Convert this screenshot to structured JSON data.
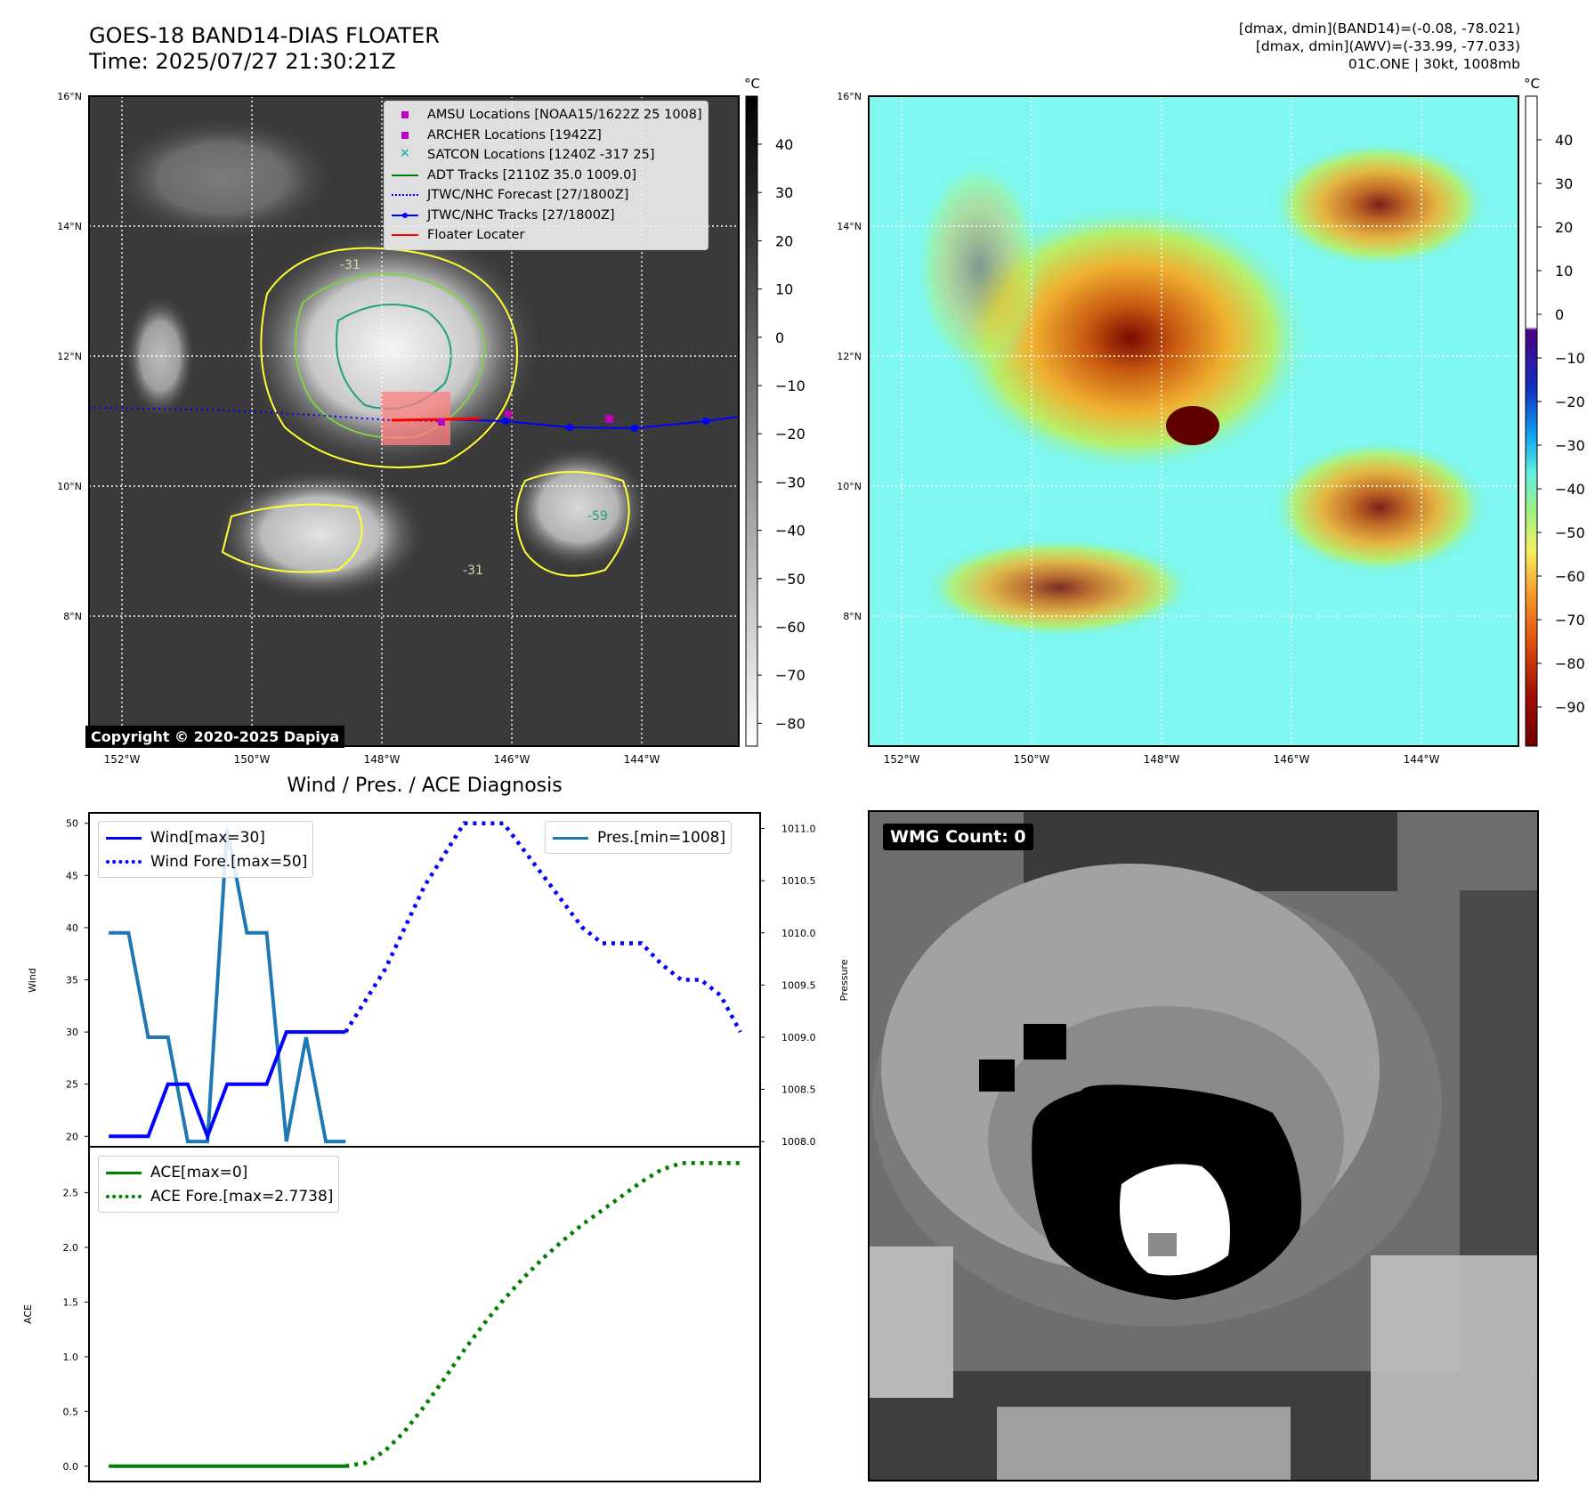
{
  "header": {
    "title_line1": "GOES-18 BAND14-DIAS FLOATER",
    "title_line2": "Time: 2025/07/27 21:30:21Z",
    "stats_line1": "[dmax, dmin](BAND14)=(-0.08, -78.021)",
    "stats_line2": "[dmax, dmin](AWV)=(-33.99, -77.033)",
    "stats_line3": "01C.ONE | 30kt, 1008mb"
  },
  "map_common": {
    "lon_ticks": [
      "152°W",
      "150°W",
      "148°W",
      "146°W",
      "144°W"
    ],
    "lat_ticks": [
      "16°N",
      "14°N",
      "12°N",
      "10°N",
      "8°N"
    ]
  },
  "ir_panel": {
    "colorbar_unit": "°C",
    "colorbar_ticks": [
      "40",
      "30",
      "20",
      "10",
      "0",
      "−10",
      "−20",
      "−30",
      "−40",
      "−50",
      "−60",
      "−70",
      "−80"
    ],
    "copyright": "Copyright © 2020-2025 Dapiya",
    "legend": [
      {
        "label": "AMSU Locations [NOAA15/1622Z 25 1008]",
        "color": "#c000c0",
        "style": "square"
      },
      {
        "label": "ARCHER Locations [1942Z]",
        "color": "#c000c0",
        "style": "square"
      },
      {
        "label": "SATCON Locations [1240Z -317 25]",
        "color": "#20b2aa",
        "style": "x"
      },
      {
        "label": "ADT Tracks [2110Z 35.0 1009.0]",
        "color": "#008000",
        "style": "line"
      },
      {
        "label": "JTWC/NHC Forecast [27/1800Z]",
        "color": "#0000ff",
        "style": "dotted"
      },
      {
        "label": "JTWC/NHC Tracks [27/1800Z]",
        "color": "#0000ff",
        "style": "line-marker"
      },
      {
        "label": "Floater Locater",
        "color": "#ff0000",
        "style": "line"
      }
    ],
    "contour_labels": [
      "-31",
      "-59",
      "-31"
    ]
  },
  "awv_panel": {
    "colorbar_unit": "°C",
    "colorbar_ticks": [
      "40",
      "30",
      "20",
      "10",
      "0",
      "−10",
      "−20",
      "−30",
      "−40",
      "−50",
      "−60",
      "−70",
      "−80",
      "−90"
    ]
  },
  "chart_data": [
    {
      "type": "line",
      "title": "Wind / Pres. / ACE Diagnosis",
      "ylabel": "Wind",
      "ylabel_right": "Pressure",
      "ylim": [
        19,
        51
      ],
      "ylim_right": [
        1007.95,
        1011.15
      ],
      "yticks": [
        "50",
        "45",
        "40",
        "35",
        "30",
        "25",
        "20"
      ],
      "yticks_right": [
        "1011.0",
        "1010.5",
        "1010.0",
        "1009.5",
        "1009.0",
        "1008.5",
        "1008.0"
      ],
      "x": [
        0,
        1,
        2,
        3,
        4,
        5,
        6,
        7,
        8,
        9,
        10,
        11,
        12,
        13,
        14,
        15,
        16,
        17,
        18,
        19,
        20,
        21,
        22,
        23,
        24,
        25,
        26,
        27,
        28,
        29,
        30,
        31,
        32
      ],
      "series": [
        {
          "name": "Wind[max=30]",
          "color": "#0000ff",
          "style": "solid",
          "x": [
            0,
            1,
            2,
            3,
            4,
            5,
            6,
            7,
            8,
            9,
            10,
            11,
            12
          ],
          "values": [
            20,
            20,
            20,
            25,
            25,
            20,
            25,
            25,
            25,
            30,
            30,
            30,
            30
          ]
        },
        {
          "name": "Wind Fore.[max=50]",
          "color": "#0000ff",
          "style": "dotted",
          "x": [
            12,
            13,
            14,
            15,
            16,
            17,
            18,
            19,
            20,
            21,
            22,
            23,
            24,
            25,
            26,
            27,
            28,
            29,
            30,
            31,
            32
          ],
          "values": [
            30,
            33,
            36,
            40,
            44,
            47,
            50,
            50,
            50,
            47.5,
            45,
            42.5,
            40,
            38.5,
            38.5,
            38.5,
            36.5,
            35,
            35,
            33.5,
            30
          ]
        },
        {
          "name": "Pres.[min=1008]",
          "color": "#1f77b4",
          "style": "solid",
          "axis": "right",
          "x": [
            0,
            1,
            2,
            3,
            4,
            5,
            6,
            7,
            8,
            9,
            10,
            11,
            12
          ],
          "values": [
            1010.0,
            1010.0,
            1009.0,
            1009.0,
            1008.0,
            1008.0,
            1011.0,
            1010.0,
            1010.0,
            1008.0,
            1009.0,
            1008.0,
            1008.0
          ]
        }
      ]
    },
    {
      "type": "line",
      "ylabel": "ACE",
      "ylim": [
        -0.14,
        2.92
      ],
      "yticks": [
        "2.5",
        "2.0",
        "1.5",
        "1.0",
        "0.5",
        "0.0"
      ],
      "x": [
        0,
        1,
        2,
        3,
        4,
        5,
        6,
        7,
        8,
        9,
        10,
        11,
        12,
        13,
        14,
        15,
        16,
        17,
        18,
        19,
        20,
        21,
        22,
        23,
        24,
        25,
        26,
        27,
        28,
        29,
        30,
        31,
        32
      ],
      "series": [
        {
          "name": "ACE[max=0]",
          "color": "#008000",
          "style": "solid",
          "x": [
            0,
            12
          ],
          "values": [
            0,
            0
          ]
        },
        {
          "name": "ACE Fore.[max=2.7738]",
          "color": "#008000",
          "style": "dotted",
          "x": [
            12,
            13,
            14,
            15,
            16,
            17,
            18,
            19,
            20,
            21,
            22,
            23,
            24,
            25,
            26,
            27,
            28,
            29,
            30,
            31,
            32
          ],
          "values": [
            0,
            0.03,
            0.14,
            0.32,
            0.55,
            0.8,
            1.06,
            1.3,
            1.52,
            1.72,
            1.9,
            2.06,
            2.21,
            2.34,
            2.47,
            2.6,
            2.71,
            2.77,
            2.77,
            2.77,
            2.77
          ]
        }
      ]
    }
  ],
  "wmg_panel": {
    "count_label": "WMG Count: 0"
  }
}
